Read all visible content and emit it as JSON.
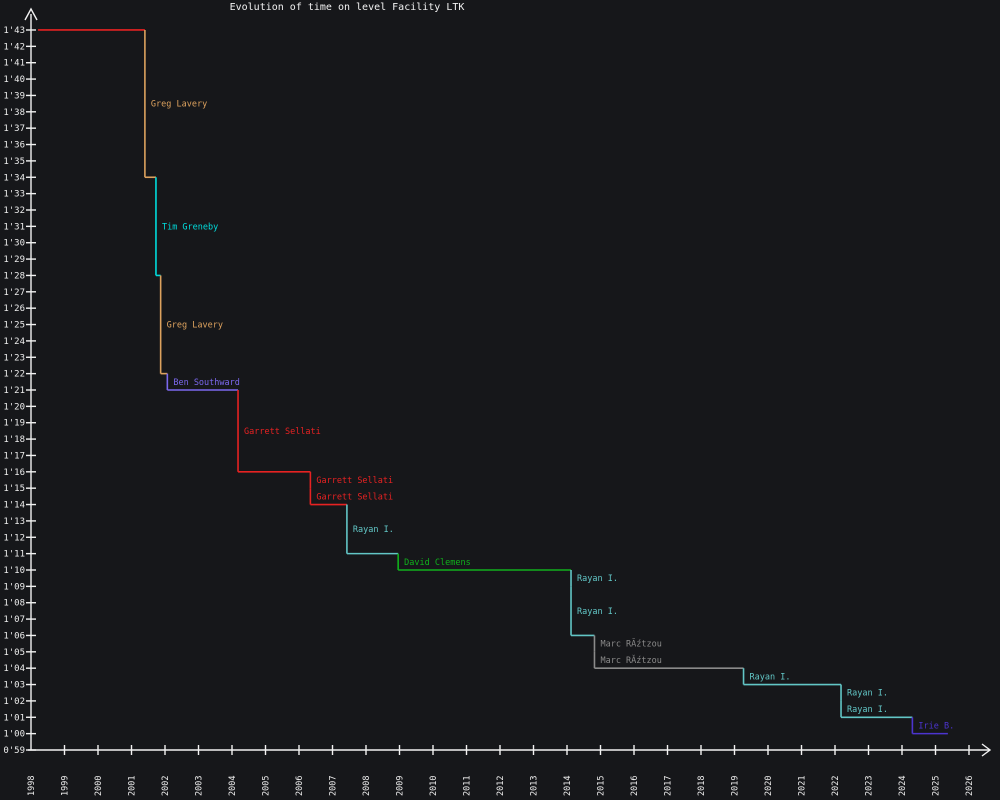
{
  "title": "Evolution of time on level Facility LTK",
  "colors": {
    "background": "#16171a",
    "axis": "#f2f2f2",
    "initial_line": "#e62222"
  },
  "chart_data": {
    "type": "step",
    "title": "Evolution of time on level Facility LTK",
    "xlabel": "",
    "ylabel": "",
    "x_axis": {
      "tick_years": [
        1998,
        1999,
        2000,
        2001,
        2002,
        2003,
        2004,
        2005,
        2006,
        2007,
        2008,
        2009,
        2010,
        2011,
        2012,
        2013,
        2014,
        2015,
        2016,
        2017,
        2018,
        2019,
        2020,
        2021,
        2022,
        2023,
        2024,
        2025,
        2026
      ],
      "range": [
        1998,
        2026.8
      ]
    },
    "y_axis": {
      "tick_labels": [
        "1'43",
        "1'42",
        "1'41",
        "1'40",
        "1'39",
        "1'38",
        "1'37",
        "1'36",
        "1'35",
        "1'34",
        "1'33",
        "1'32",
        "1'31",
        "1'30",
        "1'29",
        "1'28",
        "1'27",
        "1'26",
        "1'25",
        "1'24",
        "1'23",
        "1'22",
        "1'21",
        "1'20",
        "1'19",
        "1'18",
        "1'17",
        "1'16",
        "1'15",
        "1'14",
        "1'13",
        "1'12",
        "1'11",
        "1'10",
        "1'09",
        "1'08",
        "1'07",
        "1'06",
        "1'05",
        "1'04",
        "1'03",
        "1'02",
        "1'01",
        "1'00",
        "0'59"
      ],
      "top_seconds": 103,
      "bottom_seconds": 59
    },
    "initial": {
      "time": "1'43",
      "seconds": 103,
      "start_year": 1998.21,
      "color": "#e62222"
    },
    "records": [
      {
        "time": "1'34",
        "seconds": 94,
        "year": 2001.4,
        "holder": "Greg Lavery",
        "color": "#dda25e"
      },
      {
        "time": "1'28",
        "seconds": 88,
        "year": 2001.73,
        "holder": "Tim Greneby",
        "color": "#00dcdc"
      },
      {
        "time": "1'22",
        "seconds": 82,
        "year": 2001.87,
        "holder": "Greg Lavery",
        "color": "#dda25e"
      },
      {
        "time": "1'21",
        "seconds": 81,
        "year": 2002.07,
        "holder": "Ben Southward",
        "color": "#7b68ee"
      },
      {
        "time": "1'16",
        "seconds": 76,
        "year": 2004.18,
        "holder": "Garrett Sellati",
        "color": "#e62222"
      },
      {
        "time": "1'15",
        "seconds": 75,
        "year": 2006.34,
        "holder": "Garrett Sellati",
        "color": "#e62222"
      },
      {
        "time": "1'14",
        "seconds": 74,
        "year": 2006.34,
        "holder": "Garrett Sellati",
        "color": "#e62222"
      },
      {
        "time": "1'11",
        "seconds": 71,
        "year": 2007.43,
        "holder": "Rayan I.",
        "color": "#62c6c6"
      },
      {
        "time": "1'10",
        "seconds": 70,
        "year": 2008.96,
        "holder": "David Clemens",
        "color": "#10b01c"
      },
      {
        "time": "1'09",
        "seconds": 69,
        "year": 2014.12,
        "holder": "Rayan I.",
        "color": "#62c6c6"
      },
      {
        "time": "1'06",
        "seconds": 66,
        "year": 2014.12,
        "holder": "Rayan I.",
        "color": "#62c6c6"
      },
      {
        "time": "1'05",
        "seconds": 65,
        "year": 2014.82,
        "holder": "Marc RĂźtzou",
        "color": "#8a8a8a"
      },
      {
        "time": "1'04",
        "seconds": 64,
        "year": 2014.82,
        "holder": "Marc RĂźtzou",
        "color": "#8a8a8a"
      },
      {
        "time": "1'03",
        "seconds": 63,
        "year": 2019.27,
        "holder": "Rayan I.",
        "color": "#62c6c6"
      },
      {
        "time": "1'02",
        "seconds": 62,
        "year": 2022.18,
        "holder": "Rayan I.",
        "color": "#62c6c6"
      },
      {
        "time": "1'01",
        "seconds": 61,
        "year": 2022.18,
        "holder": "Rayan I.",
        "color": "#62c6c6"
      },
      {
        "time": "1'00",
        "seconds": 60,
        "year": 2024.31,
        "holder": "Irie B.",
        "color": "#4c34d0"
      }
    ],
    "end_year": 2025.37,
    "legend": "none",
    "grid": false
  }
}
